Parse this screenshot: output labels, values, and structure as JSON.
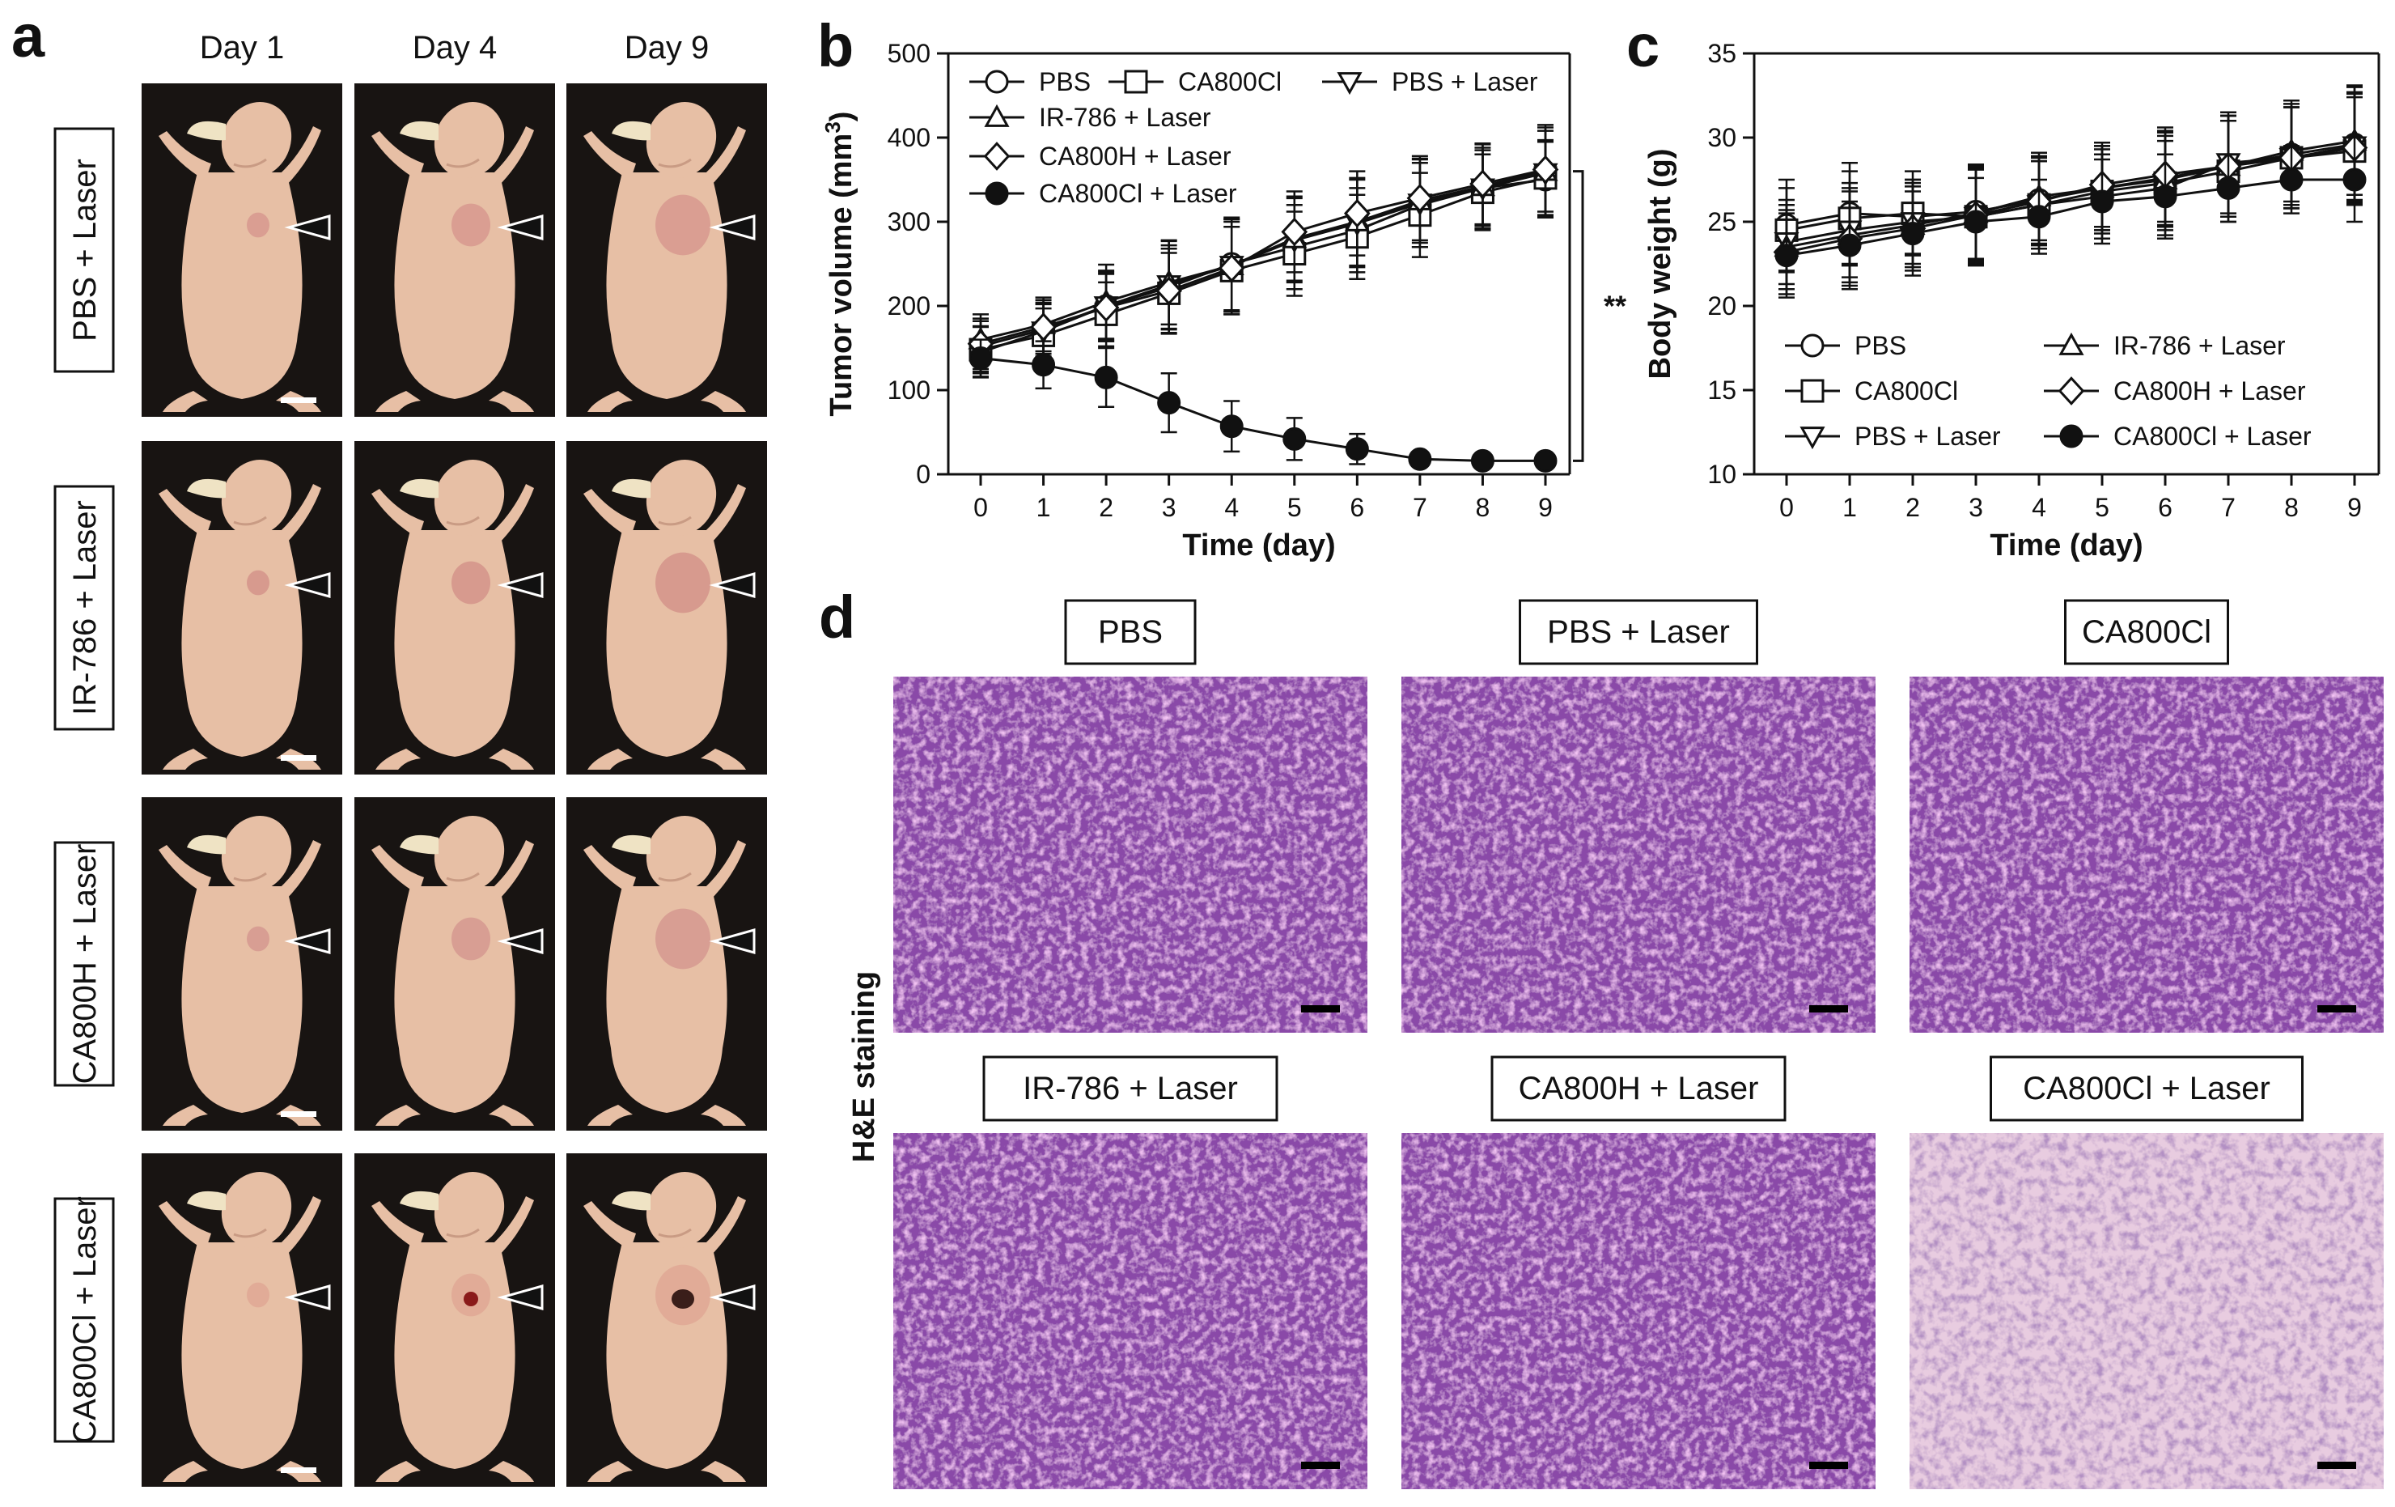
{
  "panels": {
    "a": {
      "letter": "a",
      "days": [
        "Day 1",
        "Day 4",
        "Day 9"
      ],
      "rows": [
        {
          "label": "PBS + Laser",
          "tumor_color": "#d89a90",
          "dark_spot": false
        },
        {
          "label": "IR-786 + Laser",
          "tumor_color": "#d5968c",
          "dark_spot": false
        },
        {
          "label": "CA800H + Laser",
          "tumor_color": "#d69a91",
          "dark_spot": false
        },
        {
          "label": "CA800Cl + Laser",
          "tumor_color": "#e0a896",
          "dark_spot": true
        }
      ]
    },
    "b": {
      "letter": "b"
    },
    "c": {
      "letter": "c"
    },
    "d": {
      "letter": "d",
      "side_label": "H&E staining",
      "images": [
        {
          "label": "PBS",
          "style": "dense"
        },
        {
          "label": "PBS + Laser",
          "style": "dense"
        },
        {
          "label": "CA800Cl",
          "style": "dense"
        },
        {
          "label": "IR-786 + Laser",
          "style": "dense"
        },
        {
          "label": "CA800H + Laser",
          "style": "dense"
        },
        {
          "label": "CA800Cl + Laser",
          "style": "sparse"
        }
      ]
    }
  },
  "colors": {
    "photo_bg": "#181412",
    "mouse_skin": "#e7bfa5",
    "he_dense": "#8a4aa8",
    "he_sparse": "#e8cce0"
  },
  "chart_data": [
    {
      "type": "line",
      "panel": "b",
      "xlabel": "Time (day)",
      "ylabel": "Tumor volume (mm",
      "ylabel_sup": "3",
      "ylabel_end": ")",
      "xlim": [
        0,
        9
      ],
      "ylim": [
        0,
        500
      ],
      "x_ticks": [
        0,
        1,
        2,
        3,
        4,
        5,
        6,
        7,
        8,
        9
      ],
      "y_ticks": [
        0,
        100,
        200,
        300,
        400,
        500
      ],
      "significance": "**",
      "x": [
        0,
        1,
        2,
        3,
        4,
        5,
        6,
        7,
        8,
        9
      ],
      "series": [
        {
          "name": "PBS",
          "marker": "circle-open",
          "values": [
            152,
            172,
            200,
            222,
            250,
            270,
            290,
            320,
            340,
            350
          ],
          "err": [
            30,
            32,
            40,
            50,
            55,
            50,
            50,
            50,
            45,
            45
          ]
        },
        {
          "name": "CA800Cl",
          "marker": "square-open",
          "values": [
            148,
            165,
            190,
            215,
            242,
            262,
            282,
            308,
            335,
            352
          ],
          "err": [
            28,
            32,
            38,
            48,
            52,
            50,
            50,
            50,
            45,
            45
          ]
        },
        {
          "name": "PBS + Laser",
          "marker": "triangle-down-open",
          "values": [
            145,
            170,
            200,
            225,
            248,
            278,
            298,
            322,
            340,
            358
          ],
          "err": [
            30,
            32,
            42,
            52,
            55,
            50,
            52,
            52,
            48,
            50
          ]
        },
        {
          "name": "IR-786 + Laser",
          "marker": "triangle-up-open",
          "values": [
            160,
            178,
            205,
            228,
            248,
            280,
            300,
            325,
            342,
            360
          ],
          "err": [
            30,
            32,
            44,
            50,
            55,
            50,
            52,
            50,
            50,
            55
          ]
        },
        {
          "name": "CA800H + Laser",
          "marker": "diamond-open",
          "values": [
            155,
            175,
            198,
            218,
            245,
            288,
            310,
            328,
            345,
            362
          ],
          "err": [
            30,
            32,
            40,
            50,
            55,
            48,
            50,
            50,
            48,
            50
          ]
        },
        {
          "name": "CA800Cl + Laser",
          "marker": "circle-filled",
          "values": [
            138,
            130,
            115,
            85,
            57,
            42,
            30,
            18,
            16,
            16
          ],
          "err": [
            22,
            28,
            35,
            35,
            30,
            25,
            18,
            8,
            6,
            6
          ]
        }
      ]
    },
    {
      "type": "line",
      "panel": "c",
      "xlabel": "Time (day)",
      "ylabel": "Body weight (g)",
      "xlim": [
        0,
        9
      ],
      "ylim": [
        10,
        35
      ],
      "x_ticks": [
        0,
        1,
        2,
        3,
        4,
        5,
        6,
        7,
        8,
        9
      ],
      "y_ticks": [
        10,
        15,
        20,
        25,
        30,
        35
      ],
      "x": [
        0,
        1,
        2,
        3,
        4,
        5,
        6,
        7,
        8,
        9
      ],
      "series": [
        {
          "name": "PBS",
          "marker": "circle-open",
          "values": [
            24.8,
            25.5,
            25.3,
            25.6,
            26.3,
            27.0,
            27.6,
            28.3,
            29.0,
            29.6
          ],
          "err": [
            2.7,
            3.0,
            2.2,
            2.8,
            2.6,
            2.5,
            2.8,
            3.0,
            3.0,
            3.5
          ]
        },
        {
          "name": "CA800Cl",
          "marker": "square-open",
          "values": [
            24.5,
            25.2,
            25.5,
            25.3,
            26.0,
            26.8,
            27.3,
            28.0,
            28.8,
            29.2
          ],
          "err": [
            2.5,
            2.8,
            2.5,
            2.8,
            2.6,
            2.5,
            2.8,
            3.0,
            3.0,
            3.2
          ]
        },
        {
          "name": "PBS + Laser",
          "marker": "triangle-down-open",
          "values": [
            23.8,
            24.5,
            25.0,
            25.3,
            26.0,
            26.5,
            27.0,
            28.5,
            28.8,
            29.5
          ],
          "err": [
            2.5,
            2.8,
            2.5,
            2.8,
            2.6,
            2.5,
            2.8,
            3.0,
            3.0,
            3.2
          ]
        },
        {
          "name": "IR-786 + Laser",
          "marker": "triangle-up-open",
          "values": [
            23.5,
            24.2,
            24.8,
            25.5,
            26.5,
            27.0,
            27.5,
            28.3,
            29.2,
            29.8
          ],
          "err": [
            2.5,
            2.8,
            2.5,
            2.8,
            2.6,
            2.5,
            2.8,
            3.0,
            3.0,
            3.2
          ]
        },
        {
          "name": "CA800H + Laser",
          "marker": "diamond-open",
          "values": [
            23.2,
            24.0,
            24.6,
            25.4,
            26.2,
            27.2,
            27.8,
            28.3,
            28.8,
            29.4
          ],
          "err": [
            2.5,
            2.8,
            2.5,
            2.8,
            2.6,
            2.5,
            2.8,
            3.0,
            3.0,
            3.2
          ]
        },
        {
          "name": "CA800Cl + Laser",
          "marker": "circle-filled",
          "values": [
            23.0,
            23.6,
            24.3,
            25.0,
            25.3,
            26.2,
            26.5,
            27.0,
            27.5,
            27.5
          ],
          "err": [
            2.5,
            2.6,
            2.5,
            2.6,
            2.2,
            2.5,
            2.5,
            2.0,
            2.0,
            2.5
          ]
        }
      ]
    }
  ]
}
